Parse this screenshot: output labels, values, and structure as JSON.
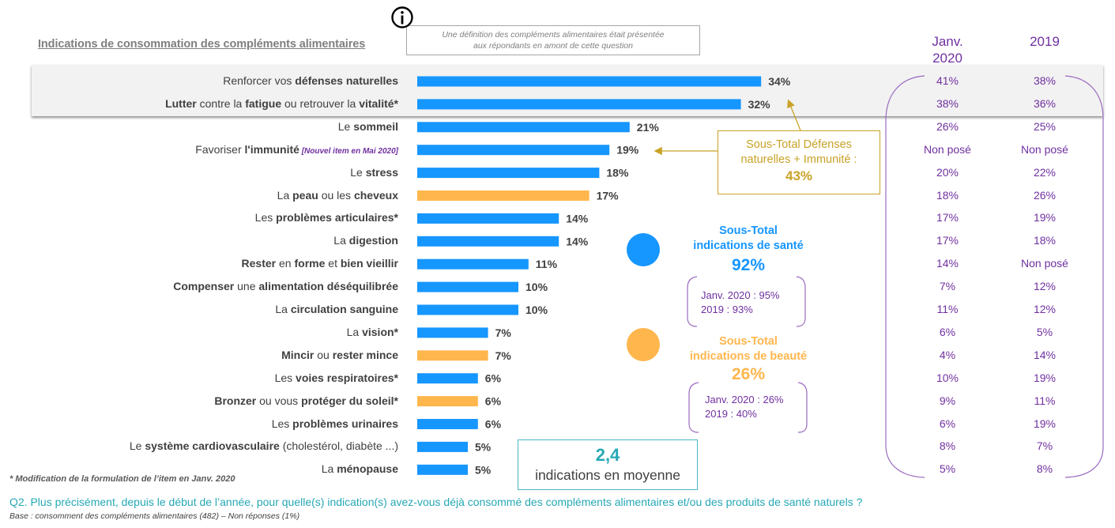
{
  "title": "Indications de consommation des compléments alimentaires",
  "info_note": {
    "icon": "info-icon",
    "line1": "Une définition des compléments alimentaires était présentée",
    "line2": "aux répondants en amont de cette question"
  },
  "colors": {
    "sante": "#1696ff",
    "beaute": "#ffb64d",
    "purple": "#7030a0",
    "gold": "#c9a227",
    "teal": "#26a8b5",
    "text": "#404040"
  },
  "columns": {
    "janv2020": "Janv. 2020",
    "janv2020_line1": "Janv.",
    "janv2020_line2": "2020",
    "y2019": "2019"
  },
  "chart_data": {
    "type": "bar",
    "orientation": "horizontal",
    "title": "Indications de consommation des compléments alimentaires",
    "unit": "%",
    "categories": [
      "Renforcer vos défenses naturelles",
      "Lutter contre la fatigue ou retrouver la vitalité*",
      "Le sommeil",
      "Favoriser l'immunité [Nouvel item en Mai 2020]",
      "Le stress",
      "La peau ou les cheveux",
      "Les problèmes articulaires*",
      "La digestion",
      "Rester en forme et bien vieillir",
      "Compenser une alimentation déséquilibrée",
      "La circulation sanguine",
      "La vision*",
      "Mincir ou rester mince",
      "Les voies respiratoires*",
      "Bronzer ou vous protéger du soleil*",
      "Les problèmes urinaires",
      "Le système cardiovasculaire (cholestérol, diabète ...)",
      "La ménopause"
    ],
    "rows": [
      {
        "parts": [
          {
            "t": "Renforcer vos ",
            "b": false
          },
          {
            "t": "défenses naturelles",
            "b": true
          }
        ],
        "value": 34,
        "group": "sante",
        "janv2020": "41%",
        "y2019": "38%"
      },
      {
        "parts": [
          {
            "t": "Lutter",
            "b": true
          },
          {
            "t": " contre la ",
            "b": false
          },
          {
            "t": "fatigue",
            "b": true
          },
          {
            "t": " ou retrouver la ",
            "b": false
          },
          {
            "t": "vitalité*",
            "b": true
          }
        ],
        "value": 32,
        "group": "sante",
        "janv2020": "38%",
        "y2019": "36%"
      },
      {
        "parts": [
          {
            "t": "Le ",
            "b": false
          },
          {
            "t": "sommeil",
            "b": true
          }
        ],
        "value": 21,
        "group": "sante",
        "janv2020": "26%",
        "y2019": "25%"
      },
      {
        "parts": [
          {
            "t": "Favoriser ",
            "b": false
          },
          {
            "t": "l'immunité",
            "b": true
          }
        ],
        "note": "[Nouvel item en Mai 2020]",
        "value": 19,
        "group": "sante",
        "janv2020": "Non posé",
        "y2019": "Non posé"
      },
      {
        "parts": [
          {
            "t": "Le ",
            "b": false
          },
          {
            "t": "stress",
            "b": true
          }
        ],
        "value": 18,
        "group": "sante",
        "janv2020": "20%",
        "y2019": "22%"
      },
      {
        "parts": [
          {
            "t": "La ",
            "b": false
          },
          {
            "t": "peau",
            "b": true
          },
          {
            "t": " ou les ",
            "b": false
          },
          {
            "t": "cheveux",
            "b": true
          }
        ],
        "value": 17,
        "group": "beaute",
        "janv2020": "18%",
        "y2019": "26%"
      },
      {
        "parts": [
          {
            "t": "Les ",
            "b": false
          },
          {
            "t": "problèmes articulaires*",
            "b": true
          }
        ],
        "value": 14,
        "group": "sante",
        "janv2020": "17%",
        "y2019": "19%"
      },
      {
        "parts": [
          {
            "t": "La ",
            "b": false
          },
          {
            "t": "digestion",
            "b": true
          }
        ],
        "value": 14,
        "group": "sante",
        "janv2020": "17%",
        "y2019": "18%"
      },
      {
        "parts": [
          {
            "t": "Rester",
            "b": true
          },
          {
            "t": " en ",
            "b": false
          },
          {
            "t": "forme",
            "b": true
          },
          {
            "t": " et ",
            "b": false
          },
          {
            "t": "bien vieillir",
            "b": true
          }
        ],
        "value": 11,
        "group": "sante",
        "janv2020": "14%",
        "y2019": "Non posé"
      },
      {
        "parts": [
          {
            "t": "Compenser",
            "b": true
          },
          {
            "t": " une ",
            "b": false
          },
          {
            "t": "alimentation déséquilibrée",
            "b": true
          }
        ],
        "value": 10,
        "group": "sante",
        "janv2020": "7%",
        "y2019": "12%"
      },
      {
        "parts": [
          {
            "t": "La ",
            "b": false
          },
          {
            "t": "circulation sanguine",
            "b": true
          }
        ],
        "value": 10,
        "group": "sante",
        "janv2020": "11%",
        "y2019": "12%"
      },
      {
        "parts": [
          {
            "t": "La ",
            "b": false
          },
          {
            "t": "vision*",
            "b": true
          }
        ],
        "value": 7,
        "group": "sante",
        "janv2020": "6%",
        "y2019": "5%"
      },
      {
        "parts": [
          {
            "t": "Mincir",
            "b": true
          },
          {
            "t": " ou ",
            "b": false
          },
          {
            "t": "rester mince",
            "b": true
          }
        ],
        "value": 7,
        "group": "beaute",
        "janv2020": "4%",
        "y2019": "14%"
      },
      {
        "parts": [
          {
            "t": "Les ",
            "b": false
          },
          {
            "t": "voies respiratoires*",
            "b": true
          }
        ],
        "value": 6,
        "group": "sante",
        "janv2020": "10%",
        "y2019": "19%"
      },
      {
        "parts": [
          {
            "t": "Bronzer",
            "b": true
          },
          {
            "t": " ou vous ",
            "b": false
          },
          {
            "t": "protéger",
            "b": true
          },
          {
            "t": " ",
            "b": false
          },
          {
            "t": "du soleil*",
            "b": true
          }
        ],
        "value": 6,
        "group": "beaute",
        "janv2020": "9%",
        "y2019": "11%"
      },
      {
        "parts": [
          {
            "t": "Les ",
            "b": false
          },
          {
            "t": "problèmes urinaires",
            "b": true
          }
        ],
        "value": 6,
        "group": "sante",
        "janv2020": "6%",
        "y2019": "19%"
      },
      {
        "parts": [
          {
            "t": "Le ",
            "b": false
          },
          {
            "t": "système cardiovasculaire",
            "b": true
          },
          {
            "t": " (cholestérol, diabète ...)",
            "b": false
          }
        ],
        "value": 5,
        "group": "sante",
        "janv2020": "8%",
        "y2019": "7%"
      },
      {
        "parts": [
          {
            "t": "La ",
            "b": false
          },
          {
            "t": "ménopause",
            "b": true
          }
        ],
        "value": 5,
        "group": "sante",
        "janv2020": "5%",
        "y2019": "8%"
      }
    ],
    "values": [
      34,
      32,
      21,
      19,
      18,
      17,
      14,
      14,
      11,
      10,
      10,
      7,
      7,
      6,
      6,
      6,
      5,
      5
    ],
    "comparison_series": [
      {
        "name": "Janv. 2020",
        "values": [
          "41%",
          "38%",
          "26%",
          "Non posé",
          "20%",
          "18%",
          "17%",
          "17%",
          "14%",
          "7%",
          "11%",
          "6%",
          "4%",
          "10%",
          "9%",
          "6%",
          "8%",
          "5%"
        ]
      },
      {
        "name": "2019",
        "values": [
          "38%",
          "36%",
          "25%",
          "Non posé",
          "22%",
          "26%",
          "19%",
          "18%",
          "Non posé",
          "12%",
          "12%",
          "5%",
          "14%",
          "19%",
          "11%",
          "19%",
          "7%",
          "8%"
        ]
      }
    ],
    "xlim": [
      0,
      34
    ],
    "grid": false,
    "highlighted_rows": [
      0,
      1
    ]
  },
  "defense_box": {
    "line1": "Sous-Total Défenses",
    "line2": "naturelles + Immunité :",
    "value": "43%"
  },
  "sante": {
    "title1": "Sous-Total",
    "title2": "indications de santé",
    "value": "92%",
    "cmp1": "Janv. 2020 : 95%",
    "cmp2": "2019 : 93%"
  },
  "beaute": {
    "title1": "Sous-Total",
    "title2": "indications de beauté",
    "value": "26%",
    "cmp1": "Janv. 2020 : 26%",
    "cmp2": "2019 : 40%"
  },
  "average": {
    "value": "2,4",
    "label": "indications en moyenne"
  },
  "footnote": "* Modification de la formulation de l’item en Janv. 2020",
  "question": "Q2. Plus précisément, depuis le début de l’année, pour quelle(s) indication(s) avez-vous déjà consommé des compléments alimentaires et/ou des produits de santé naturels ?",
  "base": "Base : consomment des compléments alimentaires (482) – Non réponses (1%)"
}
